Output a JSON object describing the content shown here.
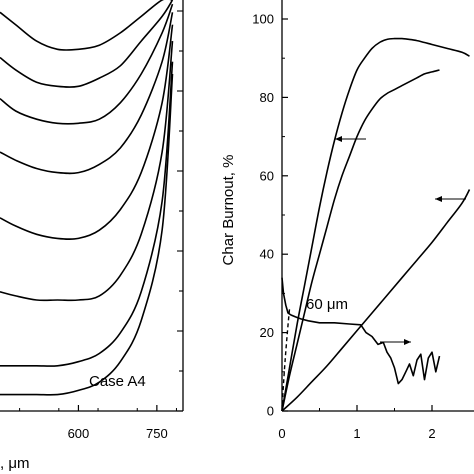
{
  "chart_data": [
    {
      "type": "line",
      "panel": "left",
      "xlabel_fragment": ", μm",
      "x_ticks": [
        600,
        750
      ],
      "xlim": [
        450,
        800
      ],
      "ylim": [
        0,
        1
      ],
      "annotation": "Case A4",
      "grid": false,
      "series": [
        {
          "x": [
            450,
            480,
            520,
            560,
            600,
            640,
            680,
            720,
            760,
            780
          ],
          "y": [
            0.97,
            0.94,
            0.9,
            0.88,
            0.88,
            0.89,
            0.92,
            0.96,
            1.0,
            1.0
          ]
        },
        {
          "x": [
            450,
            480,
            520,
            560,
            600,
            640,
            680,
            720,
            760,
            780
          ],
          "y": [
            0.86,
            0.83,
            0.8,
            0.79,
            0.79,
            0.81,
            0.84,
            0.9,
            0.96,
            1.0
          ]
        },
        {
          "x": [
            450,
            480,
            520,
            560,
            600,
            640,
            680,
            720,
            760,
            780
          ],
          "y": [
            0.76,
            0.73,
            0.71,
            0.7,
            0.7,
            0.71,
            0.75,
            0.82,
            0.92,
            0.99
          ]
        },
        {
          "x": [
            450,
            480,
            520,
            560,
            600,
            640,
            680,
            720,
            760,
            780
          ],
          "y": [
            0.63,
            0.61,
            0.59,
            0.58,
            0.58,
            0.6,
            0.64,
            0.72,
            0.85,
            0.97
          ]
        },
        {
          "x": [
            450,
            480,
            520,
            560,
            600,
            640,
            680,
            720,
            760,
            780
          ],
          "y": [
            0.47,
            0.45,
            0.43,
            0.42,
            0.42,
            0.44,
            0.49,
            0.58,
            0.75,
            0.94
          ]
        },
        {
          "x": [
            450,
            480,
            520,
            560,
            600,
            640,
            680,
            720,
            760,
            780
          ],
          "y": [
            0.29,
            0.28,
            0.27,
            0.27,
            0.27,
            0.28,
            0.33,
            0.43,
            0.63,
            0.9
          ]
        },
        {
          "x": [
            450,
            480,
            520,
            560,
            600,
            640,
            680,
            720,
            760,
            780
          ],
          "y": [
            0.11,
            0.11,
            0.11,
            0.11,
            0.12,
            0.14,
            0.19,
            0.29,
            0.51,
            0.85
          ]
        },
        {
          "x": [
            450,
            480,
            520,
            560,
            600,
            640,
            680,
            720,
            760,
            780
          ],
          "y": [
            0.04,
            0.04,
            0.04,
            0.04,
            0.05,
            0.07,
            0.12,
            0.22,
            0.44,
            0.82
          ]
        }
      ]
    },
    {
      "type": "line",
      "panel": "right",
      "ylabel": "Char Burnout, %",
      "y_ticks": [
        0,
        20,
        40,
        60,
        80,
        100
      ],
      "x_ticks": [
        0,
        1,
        2
      ],
      "xlim": [
        -0.1,
        2.5
      ],
      "ylim": [
        0,
        104
      ],
      "annotation": "60 μm",
      "grid": false,
      "series": [
        {
          "x": [
            0,
            0.1,
            0.2,
            0.3,
            0.4,
            0.5,
            0.6,
            0.7,
            0.8,
            0.9,
            1.0,
            1.1,
            1.2,
            1.3,
            1.4,
            1.5,
            1.6,
            1.7,
            1.8,
            1.9,
            2.0,
            2.2,
            2.4,
            2.5
          ],
          "y": [
            0,
            11,
            22,
            32,
            42,
            52,
            61,
            69,
            76,
            82,
            87,
            90,
            92.5,
            94,
            94.8,
            95,
            95,
            94.8,
            94.5,
            94,
            93.5,
            92.5,
            91.5,
            90.5
          ]
        },
        {
          "x": [
            0,
            0.1,
            0.2,
            0.3,
            0.4,
            0.5,
            0.6,
            0.7,
            0.8,
            0.9,
            1.0,
            1.1,
            1.2,
            1.3,
            1.4,
            1.5,
            1.6,
            1.7,
            1.8,
            1.9,
            2.0,
            2.1
          ],
          "y": [
            0,
            9,
            17,
            25,
            33,
            40,
            47,
            54,
            60,
            65,
            70,
            74,
            77,
            79.5,
            81,
            82,
            83,
            84,
            85,
            86,
            86.5,
            87
          ]
        },
        {
          "x": [
            0,
            0.2,
            0.4,
            0.6,
            0.8,
            1.0,
            1.2,
            1.4,
            1.6,
            1.8,
            2.0,
            2.2,
            2.4,
            2.5
          ],
          "y": [
            0,
            3.5,
            7.5,
            11.5,
            16,
            20.5,
            25,
            29.5,
            34,
            38.5,
            43,
            48,
            53,
            56.5
          ]
        },
        {
          "x": [
            0.0,
            0.02,
            0.05,
            0.08,
            0.12,
            0.18,
            0.25,
            0.35,
            0.5,
            0.7,
            0.9,
            1.05,
            1.12,
            1.2,
            1.28,
            1.35,
            1.4,
            1.45,
            1.5,
            1.55,
            1.6,
            1.65,
            1.7,
            1.75,
            1.8,
            1.85,
            1.9,
            1.95,
            2.0,
            2.05,
            2.1
          ],
          "y": [
            34,
            30,
            27,
            25,
            24.5,
            24,
            23.5,
            23,
            22.5,
            22.5,
            22.2,
            22,
            20,
            19,
            17,
            17.5,
            15,
            13.5,
            11,
            7,
            8,
            10,
            12,
            9,
            13,
            14.5,
            8,
            13.5,
            15,
            10,
            14
          ]
        }
      ]
    }
  ]
}
